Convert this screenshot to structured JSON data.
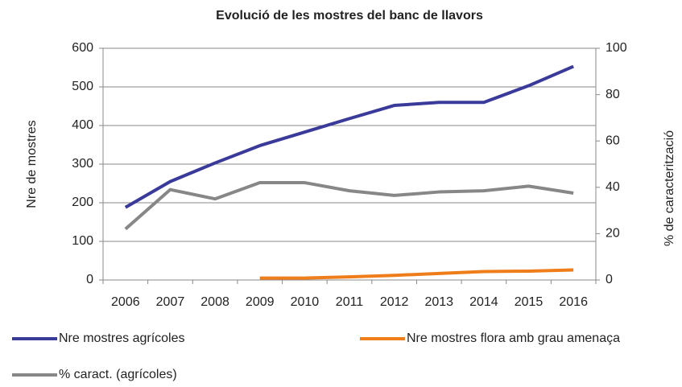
{
  "chart_data": {
    "type": "line",
    "title": "Evolució de les mostres del banc de llavors",
    "ylabel": "Nre de mostres",
    "y2label": "% de caracterització",
    "categories": [
      "2006",
      "2007",
      "2008",
      "2009",
      "2010",
      "2011",
      "2012",
      "2013",
      "2014",
      "2015",
      "2016"
    ],
    "ylim": [
      0,
      600
    ],
    "yticks": [
      0,
      100,
      200,
      300,
      400,
      500,
      600
    ],
    "y2lim": [
      0,
      100
    ],
    "y2ticks": [
      0,
      20,
      40,
      60,
      80,
      100
    ],
    "grid": true,
    "legend": "bottom",
    "series": [
      {
        "name": "Nre mostres agrícoles",
        "color": "#3a3a9a",
        "values": [
          188,
          255,
          303,
          348,
          383,
          418,
          452,
          460,
          460,
          503,
          553
        ]
      },
      {
        "name": "Nre mostres flora amb grau amenaça",
        "color": "#ee7d1a",
        "values": [
          null,
          null,
          null,
          5,
          5,
          8,
          12,
          17,
          22,
          23,
          26
        ]
      },
      {
        "name": "% caract. (agrícoles)",
        "color": "#878787",
        "axis": "y2",
        "values": [
          22,
          39,
          35,
          42,
          42,
          38.5,
          36.5,
          38,
          38.5,
          40.5,
          37.5
        ]
      }
    ]
  }
}
